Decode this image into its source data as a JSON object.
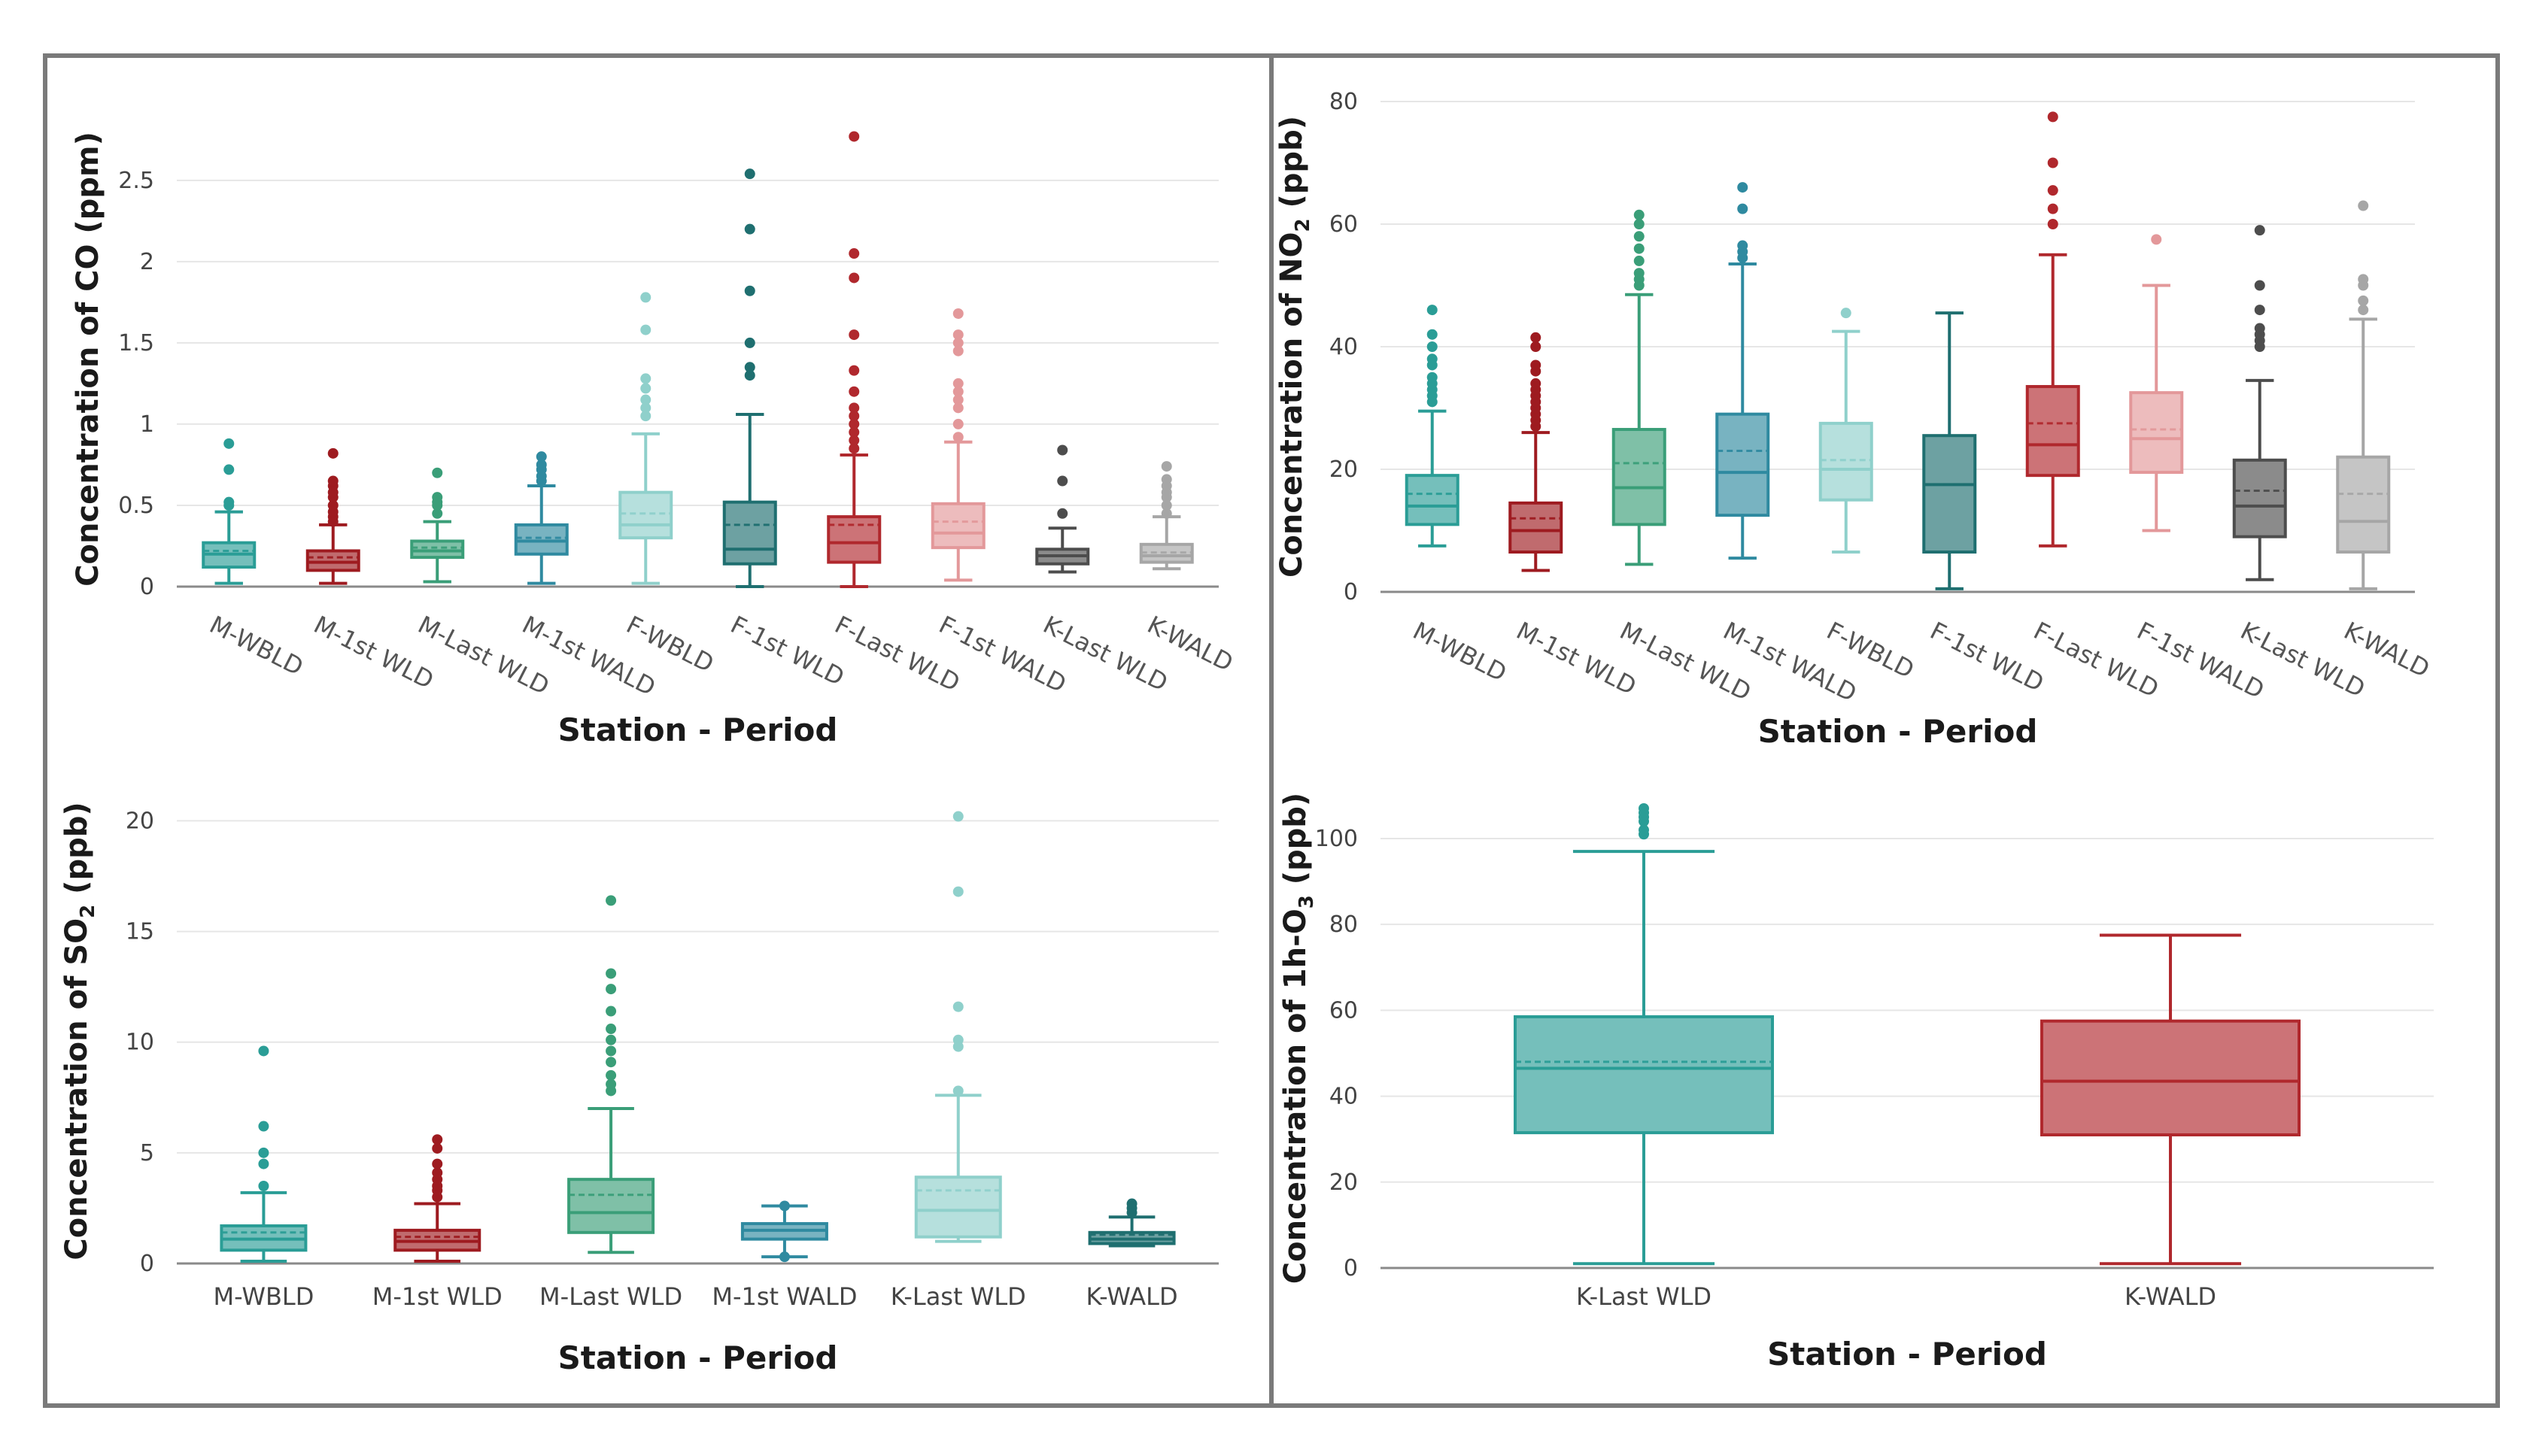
{
  "chart_data": [
    {
      "id": "co",
      "type": "box",
      "ylabel_main": "Concentration of CO (ppm)",
      "xlabel": "Station - Period",
      "ylim": [
        0,
        2.8
      ],
      "yticks": [
        0,
        0.5,
        1,
        1.5,
        2,
        2.5
      ],
      "ytick_labels": [
        "0",
        "0.5",
        "1",
        "1.5",
        "2",
        "2.5"
      ],
      "categories": [
        "M-WBLD",
        "M-1st WLD",
        "M-Last WLD",
        "M-1st WALD",
        "F-WBLD",
        "F-1st WLD",
        "F-Last WLD",
        "F-1st WALD",
        "K-Last WLD",
        "K-WALD"
      ],
      "boxes": [
        {
          "min": 0.02,
          "q1": 0.12,
          "median": 0.2,
          "q3": 0.27,
          "max": 0.46,
          "mean": 0.22,
          "outliers": [
            0.5,
            0.52,
            0.72,
            0.88
          ],
          "color": "#2a9d96"
        },
        {
          "min": 0.02,
          "q1": 0.1,
          "median": 0.15,
          "q3": 0.22,
          "max": 0.38,
          "mean": 0.18,
          "outliers": [
            0.4,
            0.43,
            0.46,
            0.5,
            0.55,
            0.58,
            0.62,
            0.65,
            0.82
          ],
          "color": "#9e1b20"
        },
        {
          "min": 0.03,
          "q1": 0.18,
          "median": 0.22,
          "q3": 0.28,
          "max": 0.4,
          "mean": 0.24,
          "outliers": [
            0.45,
            0.5,
            0.52,
            0.55,
            0.7
          ],
          "color": "#3a9e78"
        },
        {
          "min": 0.02,
          "q1": 0.2,
          "median": 0.28,
          "q3": 0.38,
          "max": 0.62,
          "mean": 0.3,
          "outliers": [
            0.65,
            0.68,
            0.72,
            0.75,
            0.8
          ],
          "color": "#2f8aa0"
        },
        {
          "min": 0.02,
          "q1": 0.3,
          "median": 0.38,
          "q3": 0.58,
          "max": 0.94,
          "mean": 0.45,
          "outliers": [
            1.05,
            1.1,
            1.15,
            1.22,
            1.28,
            1.58,
            1.78
          ],
          "color": "#8fd0cb"
        },
        {
          "min": 0.0,
          "q1": 0.14,
          "median": 0.23,
          "q3": 0.52,
          "max": 1.06,
          "mean": 0.38,
          "outliers": [
            1.3,
            1.35,
            1.5,
            1.82,
            2.2,
            2.54
          ],
          "color": "#1f6f70"
        },
        {
          "min": 0.0,
          "q1": 0.15,
          "median": 0.27,
          "q3": 0.43,
          "max": 0.81,
          "mean": 0.38,
          "outliers": [
            0.85,
            0.9,
            0.95,
            1.0,
            1.05,
            1.1,
            1.2,
            1.33,
            1.55,
            1.9,
            2.05,
            2.77
          ],
          "color": "#b0282d"
        },
        {
          "min": 0.04,
          "q1": 0.24,
          "median": 0.33,
          "q3": 0.51,
          "max": 0.89,
          "mean": 0.4,
          "outliers": [
            0.92,
            1.0,
            1.1,
            1.15,
            1.2,
            1.25,
            1.45,
            1.5,
            1.55,
            1.68
          ],
          "color": "#e3989a"
        },
        {
          "min": 0.09,
          "q1": 0.14,
          "median": 0.19,
          "q3": 0.23,
          "max": 0.36,
          "mean": 0.19,
          "outliers": [
            0.45,
            0.65,
            0.84
          ],
          "color": "#4d4d4d"
        },
        {
          "min": 0.11,
          "q1": 0.15,
          "median": 0.19,
          "q3": 0.26,
          "max": 0.43,
          "mean": 0.21,
          "outliers": [
            0.45,
            0.5,
            0.55,
            0.58,
            0.62,
            0.66,
            0.74
          ],
          "color": "#a6a6a6"
        }
      ]
    },
    {
      "id": "no2",
      "type": "box",
      "ylabel_main": "Concentration of NO",
      "ylabel_sub": "2",
      "ylabel_unit": " (ppb)",
      "xlabel": "Station - Period",
      "ylim": [
        0,
        80
      ],
      "yticks": [
        0,
        20,
        40,
        60,
        80
      ],
      "ytick_labels": [
        "0",
        "20",
        "40",
        "60",
        "80"
      ],
      "categories": [
        "M-WBLD",
        "M-1st WLD",
        "M-Last WLD",
        "M-1st WALD",
        "F-WBLD",
        "F-1st WLD",
        "F-Last WLD",
        "F-1st WALD",
        "K-Last WLD",
        "K-WALD"
      ],
      "boxes": [
        {
          "min": 7.5,
          "q1": 11,
          "median": 14,
          "q3": 19,
          "max": 29.5,
          "mean": 16,
          "outliers": [
            31,
            32,
            33,
            34,
            35,
            37,
            38,
            40,
            42,
            46
          ],
          "color": "#2a9d96"
        },
        {
          "min": 3.5,
          "q1": 6.5,
          "median": 10,
          "q3": 14.5,
          "max": 26,
          "mean": 12,
          "outliers": [
            27,
            28,
            29,
            30,
            31,
            32,
            33,
            34,
            36,
            37,
            40,
            41.5
          ],
          "color": "#9e1b20"
        },
        {
          "min": 4.5,
          "q1": 11,
          "median": 17,
          "q3": 26.5,
          "max": 48.5,
          "mean": 21,
          "outliers": [
            50,
            51,
            52,
            54,
            56,
            58,
            60,
            61.5
          ],
          "color": "#3a9e78"
        },
        {
          "min": 5.5,
          "q1": 12.5,
          "median": 19.5,
          "q3": 29,
          "max": 53.5,
          "mean": 23,
          "outliers": [
            54.5,
            55.5,
            56.5,
            62.5,
            66
          ],
          "color": "#2f8aa0"
        },
        {
          "min": 6.5,
          "q1": 15,
          "median": 20,
          "q3": 27.5,
          "max": 42.5,
          "mean": 21.5,
          "outliers": [
            45.5
          ],
          "color": "#8fd0cb"
        },
        {
          "min": 0.5,
          "q1": 6.5,
          "median": 17.5,
          "q3": 25.5,
          "max": 45.5,
          "mean": 17.5,
          "outliers": [],
          "color": "#1f6f70"
        },
        {
          "min": 7.5,
          "q1": 19,
          "median": 24,
          "q3": 33.5,
          "max": 55,
          "mean": 27.5,
          "outliers": [
            60,
            62.5,
            65.5,
            70,
            77.5
          ],
          "color": "#b0282d"
        },
        {
          "min": 10,
          "q1": 19.5,
          "median": 25,
          "q3": 32.5,
          "max": 50,
          "mean": 26.5,
          "outliers": [
            57.5
          ],
          "color": "#e3989a"
        },
        {
          "min": 2,
          "q1": 9,
          "median": 14,
          "q3": 21.5,
          "max": 34.5,
          "mean": 16.5,
          "outliers": [
            40,
            41,
            42,
            43,
            46,
            50,
            59
          ],
          "color": "#4d4d4d"
        },
        {
          "min": 0.5,
          "q1": 6.5,
          "median": 11.5,
          "q3": 22,
          "max": 44.5,
          "mean": 16,
          "outliers": [
            46,
            47.5,
            50,
            51,
            63
          ],
          "color": "#a6a6a6"
        }
      ]
    },
    {
      "id": "so2",
      "type": "box",
      "ylabel_main": "Concentration of SO",
      "ylabel_sub": "2",
      "ylabel_unit": " (ppb)",
      "xlabel": "Station - Period",
      "ylim": [
        0,
        21
      ],
      "yticks": [
        0,
        5,
        10,
        15,
        20
      ],
      "ytick_labels": [
        "0",
        "5",
        "10",
        "15",
        "20"
      ],
      "categories": [
        "M-WBLD",
        "M-1st WLD",
        "M-Last WLD",
        "M-1st WALD",
        "K-Last WLD",
        "K-WALD"
      ],
      "boxes": [
        {
          "min": 0.1,
          "q1": 0.6,
          "median": 1.1,
          "q3": 1.7,
          "max": 3.2,
          "mean": 1.4,
          "outliers": [
            3.5,
            4.5,
            5.0,
            6.2,
            9.6
          ],
          "color": "#2a9d96"
        },
        {
          "min": 0.1,
          "q1": 0.6,
          "median": 1.0,
          "q3": 1.5,
          "max": 2.7,
          "mean": 1.2,
          "outliers": [
            3.0,
            3.3,
            3.5,
            3.8,
            4.1,
            4.5,
            5.2,
            5.6
          ],
          "color": "#9e1b20"
        },
        {
          "min": 0.5,
          "q1": 1.4,
          "median": 2.3,
          "q3": 3.8,
          "max": 7.0,
          "mean": 3.1,
          "outliers": [
            7.8,
            8.1,
            8.5,
            9.1,
            9.6,
            10.1,
            10.6,
            11.4,
            12.4,
            13.1,
            16.4
          ],
          "color": "#3a9e78"
        },
        {
          "min": 0.3,
          "q1": 1.1,
          "median": 1.5,
          "q3": 1.8,
          "max": 2.6,
          "mean": 1.5,
          "outliers": [
            0.3,
            2.6
          ],
          "color": "#2f8aa0"
        },
        {
          "min": 1.0,
          "q1": 1.2,
          "median": 2.4,
          "q3": 3.9,
          "max": 7.6,
          "mean": 3.3,
          "outliers": [
            7.8,
            9.8,
            10.1,
            11.6,
            16.8,
            20.2
          ],
          "color": "#8fd0cb"
        },
        {
          "min": 0.8,
          "q1": 0.9,
          "median": 1.1,
          "q3": 1.4,
          "max": 2.1,
          "mean": 1.3,
          "outliers": [
            2.3,
            2.5,
            2.7
          ],
          "color": "#1f6f70"
        }
      ]
    },
    {
      "id": "o3",
      "type": "box",
      "ylabel_main": "Concentration of 1h-O",
      "ylabel_sub": "3",
      "ylabel_unit": " (ppb)",
      "xlabel": "Station - Period",
      "ylim": [
        0,
        107
      ],
      "yticks": [
        0,
        20,
        40,
        60,
        80,
        100
      ],
      "ytick_labels": [
        "0",
        "20",
        "40",
        "60",
        "80",
        "100"
      ],
      "categories": [
        "K-Last WLD",
        "K-WALD"
      ],
      "boxes": [
        {
          "min": 1,
          "q1": 31.5,
          "median": 46.5,
          "q3": 58.5,
          "max": 97,
          "mean": 48,
          "outliers": [
            101,
            102,
            104,
            105,
            106,
            107
          ],
          "color": "#2a9d96"
        },
        {
          "min": 1,
          "q1": 31,
          "median": 43.5,
          "q3": 57.5,
          "max": 77.5,
          "mean": 43.5,
          "outliers": [],
          "color": "#b0282d"
        }
      ]
    }
  ]
}
